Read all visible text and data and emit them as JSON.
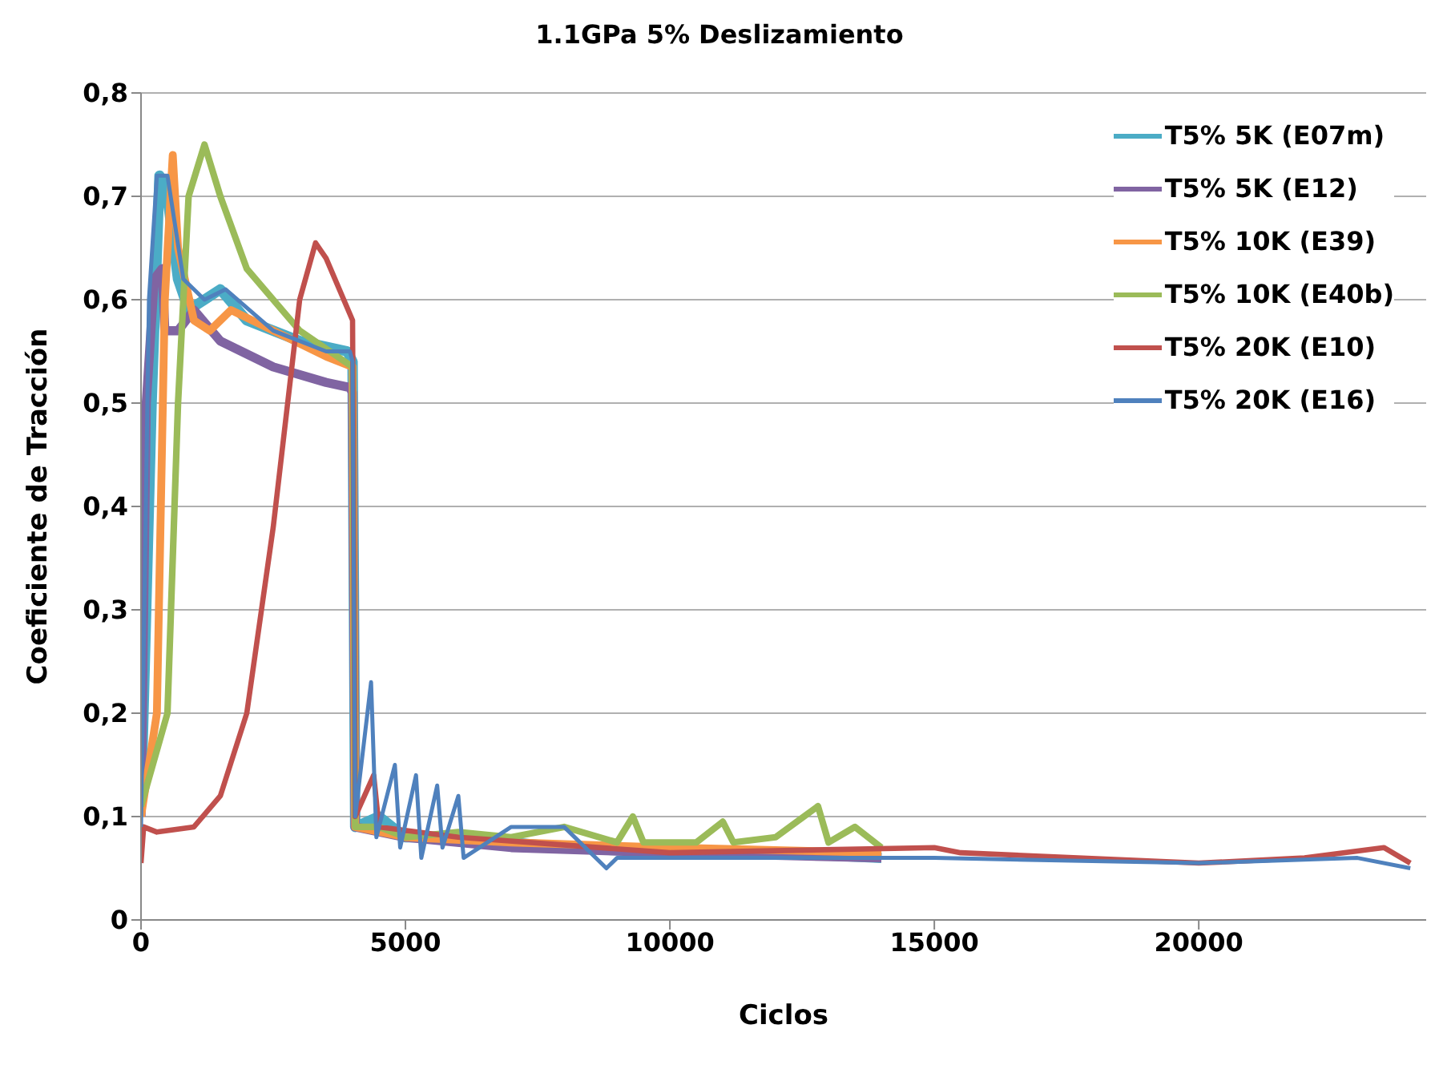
{
  "chart_data": {
    "type": "line",
    "title": "1.1GPa 5% Deslizamiento",
    "xlabel": "Ciclos",
    "ylabel": "Coeficiente de Tracción",
    "xlim": [
      0,
      24300
    ],
    "xticks": [
      0,
      5000,
      10000,
      15000,
      20000
    ],
    "ylim": [
      0,
      0.8
    ],
    "yticks": [
      {
        "value": 0,
        "label": "0"
      },
      {
        "value": 0.1,
        "label": "0,1"
      },
      {
        "value": 0.2,
        "label": "0,2"
      },
      {
        "value": 0.3,
        "label": "0,3"
      },
      {
        "value": 0.4,
        "label": "0,4"
      },
      {
        "value": 0.5,
        "label": "0,5"
      },
      {
        "value": 0.6,
        "label": "0,6"
      },
      {
        "value": 0.7,
        "label": "0,7"
      },
      {
        "value": 0.8,
        "label": "0,8"
      }
    ],
    "grid": "y",
    "legend": "top right",
    "marker": "none",
    "line_style": "solid",
    "series": [
      {
        "name": "T5% 5K (E07m)",
        "color": "#4bacc6",
        "x": [
          0,
          200,
          350,
          500,
          700,
          900,
          1200,
          1500,
          2000,
          3000,
          3900,
          4000,
          4050,
          4500,
          5000,
          6000,
          8000,
          10000,
          12000,
          14000
        ],
        "values": [
          0.11,
          0.5,
          0.72,
          0.7,
          0.62,
          0.59,
          0.6,
          0.61,
          0.58,
          0.56,
          0.55,
          0.54,
          0.09,
          0.1,
          0.08,
          0.08,
          0.07,
          0.065,
          0.065,
          0.06
        ]
      },
      {
        "name": "T5% 5K (E12)",
        "color": "#8064a2",
        "x": [
          0,
          100,
          250,
          400,
          450,
          700,
          1000,
          1500,
          2500,
          3500,
          3950,
          4000,
          4050,
          5000,
          7000,
          10000,
          14000
        ],
        "values": [
          0.1,
          0.5,
          0.62,
          0.63,
          0.57,
          0.57,
          0.59,
          0.56,
          0.535,
          0.52,
          0.515,
          0.51,
          0.09,
          0.08,
          0.07,
          0.065,
          0.06
        ]
      },
      {
        "name": "T5% 10K (E39)",
        "color": "#f79646",
        "x": [
          0,
          300,
          450,
          600,
          700,
          1000,
          1300,
          1700,
          2500,
          3500,
          4000,
          4050,
          5000,
          7000,
          10000,
          14000
        ],
        "values": [
          0.1,
          0.2,
          0.6,
          0.74,
          0.65,
          0.58,
          0.57,
          0.59,
          0.57,
          0.545,
          0.535,
          0.09,
          0.08,
          0.075,
          0.07,
          0.065
        ]
      },
      {
        "name": "T5% 10K (E40b)",
        "color": "#9bbb59",
        "x": [
          0,
          500,
          700,
          900,
          1200,
          1500,
          2000,
          3000,
          4000,
          4050,
          4500,
          5000,
          6000,
          7000,
          8000,
          9000,
          9300,
          9500,
          10500,
          11000,
          11200,
          12000,
          12800,
          13000,
          13500,
          14000
        ],
        "values": [
          0.11,
          0.2,
          0.5,
          0.7,
          0.75,
          0.7,
          0.63,
          0.57,
          0.535,
          0.09,
          0.09,
          0.08,
          0.085,
          0.08,
          0.09,
          0.075,
          0.1,
          0.075,
          0.075,
          0.095,
          0.075,
          0.08,
          0.11,
          0.075,
          0.09,
          0.07
        ]
      },
      {
        "name": "T5% 20K (E10)",
        "color": "#c0504d",
        "x": [
          0,
          50,
          300,
          1000,
          1500,
          2000,
          2500,
          3000,
          3300,
          3500,
          4000,
          4050,
          4400,
          4500,
          6000,
          10000,
          15000,
          15500,
          20000,
          22000,
          23500,
          24000
        ],
        "values": [
          0.055,
          0.09,
          0.085,
          0.09,
          0.12,
          0.2,
          0.38,
          0.6,
          0.655,
          0.64,
          0.58,
          0.1,
          0.14,
          0.09,
          0.08,
          0.065,
          0.07,
          0.065,
          0.055,
          0.06,
          0.07,
          0.055
        ]
      },
      {
        "name": "T5% 20K (E16)",
        "color": "#4f81bd",
        "x": [
          0,
          150,
          300,
          500,
          800,
          1200,
          1600,
          2500,
          3500,
          3950,
          4000,
          4050,
          4350,
          4450,
          4800,
          4900,
          5200,
          5300,
          5600,
          5700,
          6000,
          6100,
          7000,
          8000,
          8800,
          9000,
          12000,
          15000,
          20000,
          23000,
          24000
        ],
        "values": [
          0.09,
          0.6,
          0.72,
          0.72,
          0.62,
          0.6,
          0.61,
          0.57,
          0.55,
          0.55,
          0.54,
          0.1,
          0.23,
          0.08,
          0.15,
          0.07,
          0.14,
          0.06,
          0.13,
          0.07,
          0.12,
          0.06,
          0.09,
          0.09,
          0.05,
          0.06,
          0.06,
          0.06,
          0.055,
          0.06,
          0.05
        ]
      }
    ]
  }
}
